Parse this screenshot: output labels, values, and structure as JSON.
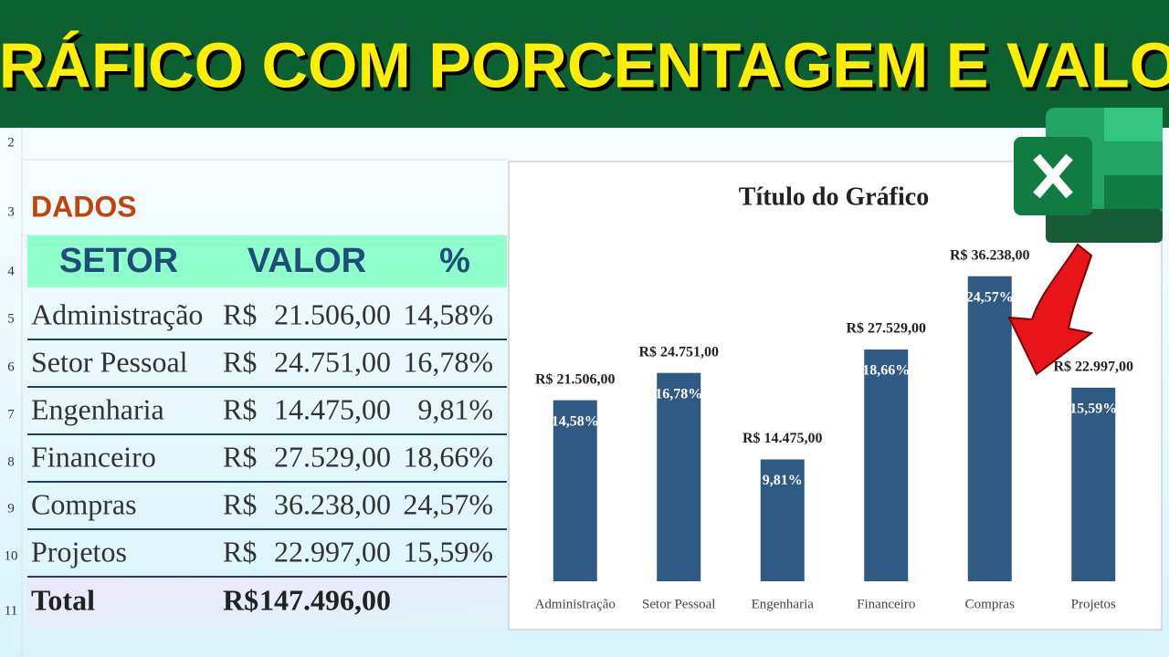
{
  "banner": {
    "title": "GRÁFICO COM PORCENTAGEM E VALOR"
  },
  "sheet": {
    "row_numbers": [
      "2",
      "3",
      "4",
      "5",
      "6",
      "7",
      "8",
      "9",
      "10",
      "11"
    ]
  },
  "table": {
    "label": "DADOS",
    "header": [
      "SETOR",
      "VALOR",
      "%"
    ],
    "rows": [
      [
        "Administração",
        "R$",
        "21.506,00",
        "14,58%"
      ],
      [
        "Setor Pessoal",
        "R$",
        "24.751,00",
        "16,78%"
      ],
      [
        "Engenharia",
        "R$",
        "14.475,00",
        "9,81%"
      ],
      [
        "Financeiro",
        "R$",
        "27.529,00",
        "18,66%"
      ],
      [
        "Compras",
        "R$",
        "36.238,00",
        "24,57%"
      ],
      [
        "Projetos",
        "R$",
        "22.997,00",
        "15,59%"
      ]
    ],
    "total": [
      "Total",
      "R$",
      "147.496,00"
    ]
  },
  "chart_data": {
    "type": "bar",
    "title": "Título do Gráfico",
    "categories": [
      "Administração",
      "Setor Pessoal",
      "Engenharia",
      "Financeiro",
      "Compras",
      "Projetos"
    ],
    "values": [
      21506,
      24751,
      14475,
      27529,
      36238,
      22997
    ],
    "value_labels": [
      "R$ 21.506,00",
      "R$ 24.751,00",
      "R$ 14.475,00",
      "R$ 27.529,00",
      "R$ 36.238,00",
      "R$ 22.997,00"
    ],
    "percent_values": [
      14.58,
      16.78,
      9.81,
      18.66,
      24.57,
      15.59
    ],
    "percent_labels": [
      "14,58%",
      "16,78%",
      "9,81%",
      "18,66%",
      "24,57%",
      "15,59%"
    ],
    "color": "#2f5a84",
    "ylim": [
      0,
      40000
    ]
  }
}
